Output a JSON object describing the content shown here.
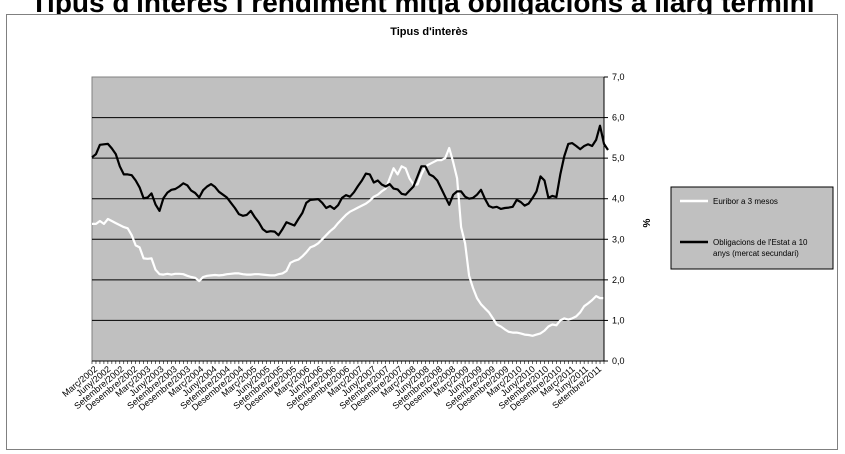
{
  "page": {
    "heading": "Tipus d'interès i rendiment mitjà obligacions a llarg termini"
  },
  "chart_data": {
    "type": "line",
    "title": "Tipus d'interès",
    "xlabel": "",
    "ylabel": "%",
    "ylim": [
      0,
      7
    ],
    "yticks": [
      "0,0",
      "1,0",
      "2,0",
      "3,0",
      "4,0",
      "5,0",
      "6,0",
      "7,0"
    ],
    "y_axis_side": "right",
    "grid": true,
    "legend_position": "right",
    "colors": {
      "plot_bg": "#c0c0c0",
      "grid": "#000000",
      "euribor": "#ffffff",
      "bonds": "#000000",
      "legend_bg": "#c0c0c0"
    },
    "x_tick_labels": [
      "Març/2002",
      "Juny/2002",
      "Setembre/2002",
      "Desembre/2002",
      "Març/2003",
      "Juny/2003",
      "Setembre/2003",
      "Desembre/2003",
      "Març/2004",
      "Juny/2004",
      "Setembre/2004",
      "Desembre/2004",
      "Març/2005",
      "Juny/2005",
      "Setembre/2005",
      "Desembre/2005",
      "Març/2006",
      "Juny/2006",
      "Setembre/2006",
      "Desembre/2006",
      "Març/2007",
      "Juny/2007",
      "Setembre/2007",
      "Desembre/2007",
      "Març/2008",
      "Juny/2008",
      "Setembre/2008",
      "Desembre/2008",
      "Març/2009",
      "Juny/2009",
      "Setembre/2009",
      "Desembre/2009",
      "Març/2010",
      "Juny/2010",
      "Setembre/2010",
      "Desembre/2010",
      "Març/2011",
      "Juny/2011",
      "Setembre/2011"
    ],
    "series": [
      {
        "name": "Euribor a 3 mesos",
        "values": [
          3.38,
          3.38,
          3.45,
          3.38,
          3.5,
          3.45,
          3.4,
          3.35,
          3.3,
          3.27,
          3.1,
          2.85,
          2.8,
          2.53,
          2.52,
          2.53,
          2.25,
          2.14,
          2.13,
          2.15,
          2.13,
          2.15,
          2.15,
          2.14,
          2.1,
          2.07,
          2.05,
          1.97,
          2.07,
          2.1,
          2.11,
          2.12,
          2.11,
          2.12,
          2.14,
          2.15,
          2.16,
          2.16,
          2.14,
          2.13,
          2.13,
          2.14,
          2.14,
          2.13,
          2.12,
          2.11,
          2.11,
          2.14,
          2.16,
          2.22,
          2.42,
          2.47,
          2.5,
          2.58,
          2.68,
          2.8,
          2.84,
          2.9,
          3.0,
          3.1,
          3.2,
          3.28,
          3.4,
          3.5,
          3.6,
          3.68,
          3.73,
          3.78,
          3.83,
          3.88,
          3.95,
          4.05,
          4.1,
          4.18,
          4.25,
          4.5,
          4.75,
          4.6,
          4.8,
          4.75,
          4.5,
          4.35,
          4.35,
          4.6,
          4.8,
          4.85,
          4.9,
          4.95,
          4.95,
          5.0,
          5.25,
          4.9,
          4.5,
          3.3,
          2.9,
          2.1,
          1.8,
          1.55,
          1.4,
          1.3,
          1.2,
          1.05,
          0.9,
          0.85,
          0.78,
          0.72,
          0.7,
          0.7,
          0.68,
          0.65,
          0.64,
          0.62,
          0.65,
          0.68,
          0.75,
          0.85,
          0.9,
          0.88,
          1.0,
          1.05,
          1.02,
          1.05,
          1.1,
          1.2,
          1.35,
          1.42,
          1.5,
          1.6,
          1.55,
          1.55
        ]
      },
      {
        "name": "Obligacions de l'Estat a 10 anys (mercat secundari)",
        "values": [
          5.02,
          5.1,
          5.33,
          5.34,
          5.35,
          5.24,
          5.1,
          4.8,
          4.6,
          4.6,
          4.58,
          4.45,
          4.28,
          4.01,
          4.03,
          4.13,
          3.86,
          3.7,
          4.01,
          4.15,
          4.22,
          4.24,
          4.3,
          4.38,
          4.33,
          4.2,
          4.14,
          4.03,
          4.21,
          4.3,
          4.36,
          4.29,
          4.17,
          4.1,
          4.03,
          3.9,
          3.77,
          3.62,
          3.58,
          3.6,
          3.7,
          3.55,
          3.42,
          3.25,
          3.18,
          3.2,
          3.19,
          3.1,
          3.25,
          3.42,
          3.38,
          3.34,
          3.5,
          3.65,
          3.9,
          3.97,
          3.98,
          3.99,
          3.9,
          3.77,
          3.82,
          3.75,
          3.84,
          4.02,
          4.09,
          4.05,
          4.16,
          4.31,
          4.45,
          4.62,
          4.6,
          4.4,
          4.45,
          4.35,
          4.3,
          4.36,
          4.25,
          4.23,
          4.12,
          4.1,
          4.2,
          4.3,
          4.55,
          4.8,
          4.8,
          4.6,
          4.55,
          4.45,
          4.25,
          4.05,
          3.85,
          4.1,
          4.18,
          4.18,
          4.05,
          4.0,
          4.02,
          4.1,
          4.22,
          4.0,
          3.82,
          3.78,
          3.8,
          3.75,
          3.77,
          3.78,
          3.8,
          3.97,
          3.92,
          3.83,
          3.88,
          4.02,
          4.18,
          4.55,
          4.45,
          4.02,
          4.07,
          4.04,
          4.6,
          5.05,
          5.35,
          5.37,
          5.3,
          5.22,
          5.3,
          5.34,
          5.3,
          5.45,
          5.8,
          5.35,
          5.2
        ]
      }
    ]
  }
}
